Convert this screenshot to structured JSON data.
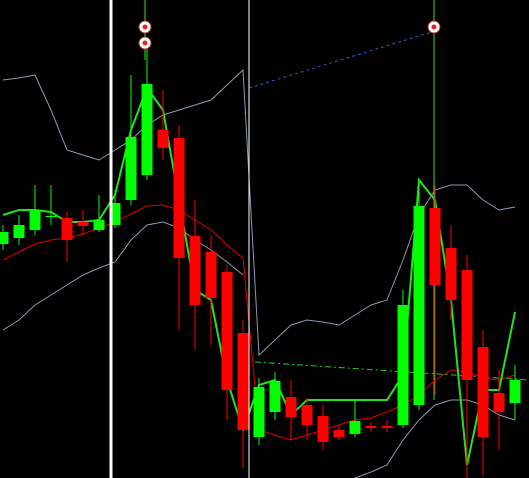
{
  "chart_data": {
    "type": "candlestick",
    "categories": [
      null,
      null,
      null,
      null,
      null,
      null,
      null,
      null,
      null,
      null,
      null,
      null,
      null,
      null,
      null,
      null,
      null,
      null,
      null,
      null,
      null,
      null,
      null,
      null,
      null,
      null,
      null,
      null,
      null,
      null,
      null,
      null,
      null
    ],
    "open": [
      234,
      240,
      248,
      262,
      260,
      256,
      248,
      253,
      278,
      303,
      348,
      340,
      242,
      226,
      206,
      145,
      41,
      66,
      81,
      73,
      62,
      48,
      44,
      52,
      52,
      53,
      73,
      270,
      230,
      208,
      131,
      85,
      75
    ],
    "close": [
      246,
      253,
      268,
      262,
      238,
      252,
      258,
      275,
      341,
      394,
      330,
      220,
      173,
      180,
      88,
      48,
      91,
      97,
      61,
      53,
      36,
      41,
      57,
      50,
      50,
      173,
      272,
      193,
      178,
      98,
      41,
      66,
      98
    ],
    "high": [
      253,
      263,
      293,
      293,
      266,
      268,
      283,
      288,
      403,
      438,
      388,
      353,
      278,
      243,
      213,
      158,
      100,
      106,
      98,
      80,
      73,
      53,
      78,
      56,
      58,
      188,
      298,
      293,
      253,
      223,
      148,
      108,
      113
    ],
    "low": [
      228,
      233,
      243,
      253,
      216,
      243,
      246,
      250,
      273,
      298,
      318,
      148,
      128,
      133,
      58,
      10,
      33,
      58,
      38,
      38,
      28,
      38,
      41,
      46,
      46,
      50,
      68,
      83,
      158,
      0,
      3,
      28,
      58
    ],
    "up_color": "#00ff00",
    "down_color": "#ff0000",
    "series": [
      {
        "color": "#8a9ab0",
        "values": [
          398,
          400,
          403,
          368,
          328,
          323,
          318,
          328,
          338,
          353,
          363,
          368,
          373,
          378,
          393,
          408,
          123,
          138,
          153,
          158,
          156,
          153,
          163,
          173,
          178,
          218,
          263,
          288,
          293,
          293,
          278,
          268,
          271
        ]
      },
      {
        "color": "#e00000",
        "values": [
          218,
          226,
          234,
          238,
          240,
          244,
          250,
          256,
          264,
          272,
          273,
          268,
          258,
          248,
          233,
          220,
          48,
          43,
          38,
          43,
          48,
          53,
          58,
          60,
          66,
          73,
          83,
          98,
          108,
          106,
          100,
          98,
          103
        ]
      },
      {
        "color": "#8a9ab0",
        "values": [
          148,
          158,
          173,
          183,
          193,
          203,
          210,
          216,
          238,
          253,
          256,
          250,
          238,
          228,
          216,
          203,
          null,
          null,
          null,
          null,
          null,
          null,
          0,
          6,
          13,
          38,
          58,
          73,
          78,
          78,
          73,
          63,
          58
        ]
      },
      {
        "color": "#22e022",
        "values": [
          263,
          268,
          268,
          266,
          256,
          256,
          258,
          283,
          348,
          390,
          368,
          278,
          188,
          178,
          98,
          48,
          93,
          98,
          63,
          78,
          78,
          78,
          78,
          78,
          78,
          103,
          298,
          278,
          178,
          13,
          88,
          88,
          166
        ]
      }
    ],
    "ylim": [
      0,
      478
    ]
  }
}
